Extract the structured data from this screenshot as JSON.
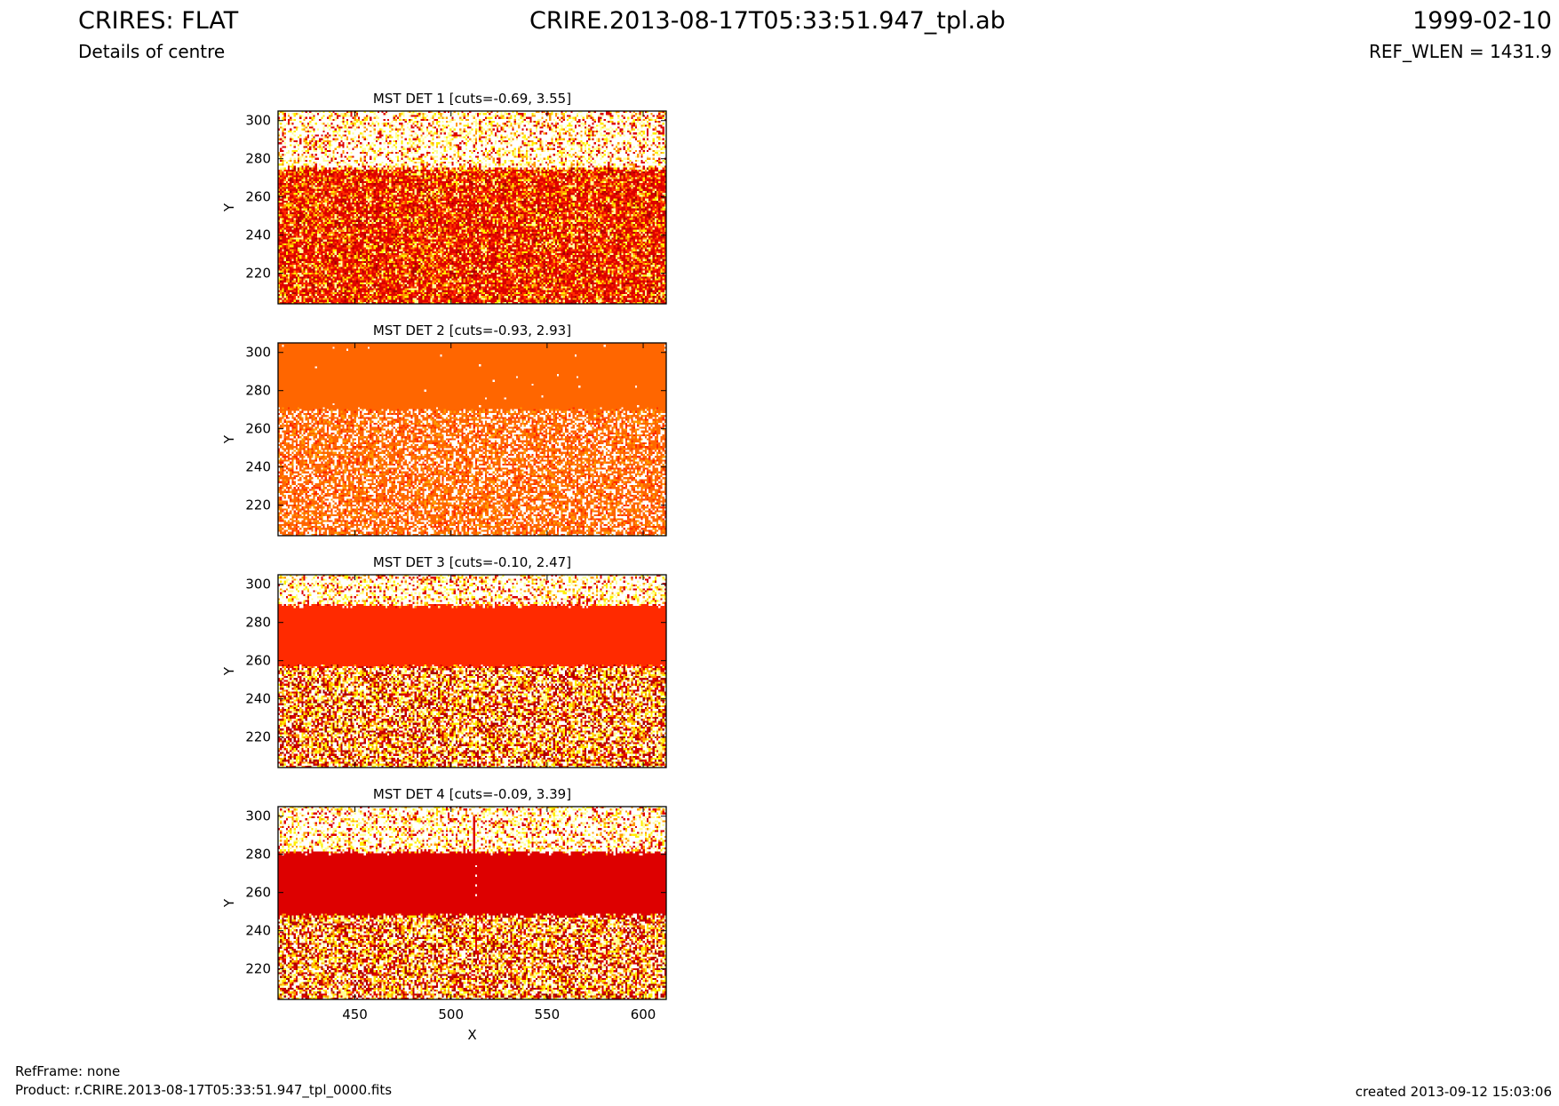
{
  "header": {
    "title_left": "CRIRES: FLAT",
    "subtitle_left": "Details of centre",
    "title_center": "CRIRE.2013-08-17T05:33:51.947_tpl.ab",
    "date_right": "1999-02-10",
    "ref_wlen": "REF_WLEN = 1431.9"
  },
  "footer": {
    "refframe": "RefFrame: none",
    "product": "Product: r.CRIRE.2013-08-17T05:33:51.947_tpl_0000.fits",
    "created": "created 2013-09-12 15:03:06"
  },
  "colors": {
    "white": "#ffffff",
    "yellow": "#ffee00",
    "light_yellow": "#ffff99",
    "orange": "#ff9900",
    "dark_orange": "#ff6600",
    "red_orange": "#ff2a00",
    "red": "#dd0000",
    "dark_red": "#aa0000"
  },
  "chart_data": [
    {
      "type": "heatmap",
      "title": "MST DET 1 [cuts=-0.69, 3.55]",
      "xlabel": "",
      "ylabel": "Y",
      "xlim": [
        410,
        612
      ],
      "ylim": [
        204,
        305
      ],
      "xticks": [],
      "yticks": [
        220,
        240,
        260,
        280,
        300
      ],
      "bands": [
        {
          "y": [
            204,
            275
          ],
          "pattern": "speckle-red"
        },
        {
          "y": [
            275,
            305
          ],
          "pattern": "speckle-light"
        }
      ]
    },
    {
      "type": "heatmap",
      "title": "MST DET 2 [cuts=-0.93, 2.93]",
      "xlabel": "",
      "ylabel": "Y",
      "xlim": [
        410,
        612
      ],
      "ylim": [
        204,
        305
      ],
      "xticks": [],
      "yticks": [
        220,
        240,
        260,
        280,
        300
      ],
      "bands": [
        {
          "y": [
            204,
            270
          ],
          "pattern": "speckle-orange-white"
        },
        {
          "y": [
            270,
            305
          ],
          "pattern": "solid-orange"
        }
      ]
    },
    {
      "type": "heatmap",
      "title": "MST DET 3 [cuts=-0.10, 2.47]",
      "xlabel": "",
      "ylabel": "Y",
      "xlim": [
        410,
        612
      ],
      "ylim": [
        204,
        305
      ],
      "xticks": [],
      "yticks": [
        220,
        240,
        260,
        280,
        300
      ],
      "bands": [
        {
          "y": [
            204,
            257
          ],
          "pattern": "speckle-mixed"
        },
        {
          "y": [
            257,
            289
          ],
          "pattern": "solid-red-orange"
        },
        {
          "y": [
            289,
            305
          ],
          "pattern": "speckle-light"
        }
      ]
    },
    {
      "type": "heatmap",
      "title": "MST DET 4 [cuts=-0.09, 3.39]",
      "xlabel": "X",
      "ylabel": "Y",
      "xlim": [
        410,
        612
      ],
      "ylim": [
        204,
        305
      ],
      "xticks": [
        450,
        500,
        550,
        600
      ],
      "yticks": [
        220,
        240,
        260,
        280,
        300
      ],
      "bands": [
        {
          "y": [
            204,
            248
          ],
          "pattern": "speckle-mixed"
        },
        {
          "y": [
            248,
            281
          ],
          "pattern": "solid-red"
        },
        {
          "y": [
            281,
            305
          ],
          "pattern": "speckle-light"
        }
      ]
    }
  ]
}
